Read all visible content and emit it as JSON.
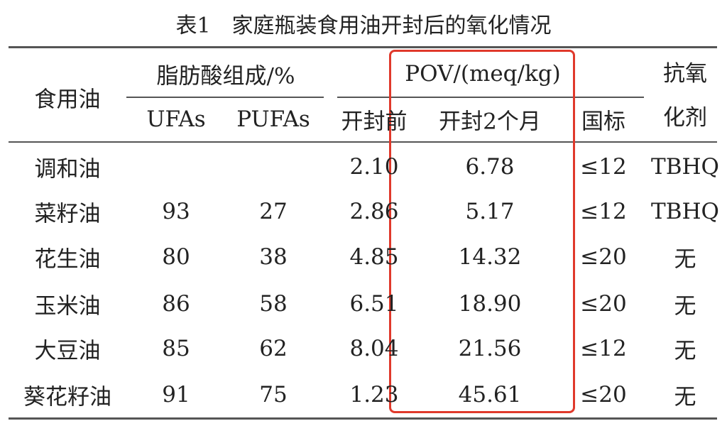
{
  "title": "表1　家庭瓶装食用油开封后的氧化情况",
  "table": {
    "header": {
      "oil": "食用油",
      "fatty_acid_group": "脂肪酸组成/%",
      "pov_group": "POV/(meq/kg)",
      "antioxidant": "抗氧化剂",
      "columns": [
        "UFAs",
        "PUFAs",
        "开封前",
        "开封2个月",
        "国标"
      ]
    },
    "rows": [
      [
        "调和油",
        null,
        null,
        "2.10",
        "6.78",
        "≤12",
        "TBHQ"
      ],
      [
        "菜籽油",
        "93",
        "27",
        "2.86",
        "5.17",
        "≤12",
        "TBHQ"
      ],
      [
        "花生油",
        "80",
        "38",
        "4.85",
        "14.32",
        "≤20",
        "无"
      ],
      [
        "玉米油",
        "86",
        "58",
        "6.51",
        "18.90",
        "≤20",
        "无"
      ],
      [
        "大豆油",
        "85",
        "62",
        "8.04",
        "21.56",
        "≤12",
        "无"
      ],
      [
        "葵花籽油",
        "91",
        "75",
        "1.23",
        "45.61",
        "≤20",
        "无"
      ]
    ]
  }
}
